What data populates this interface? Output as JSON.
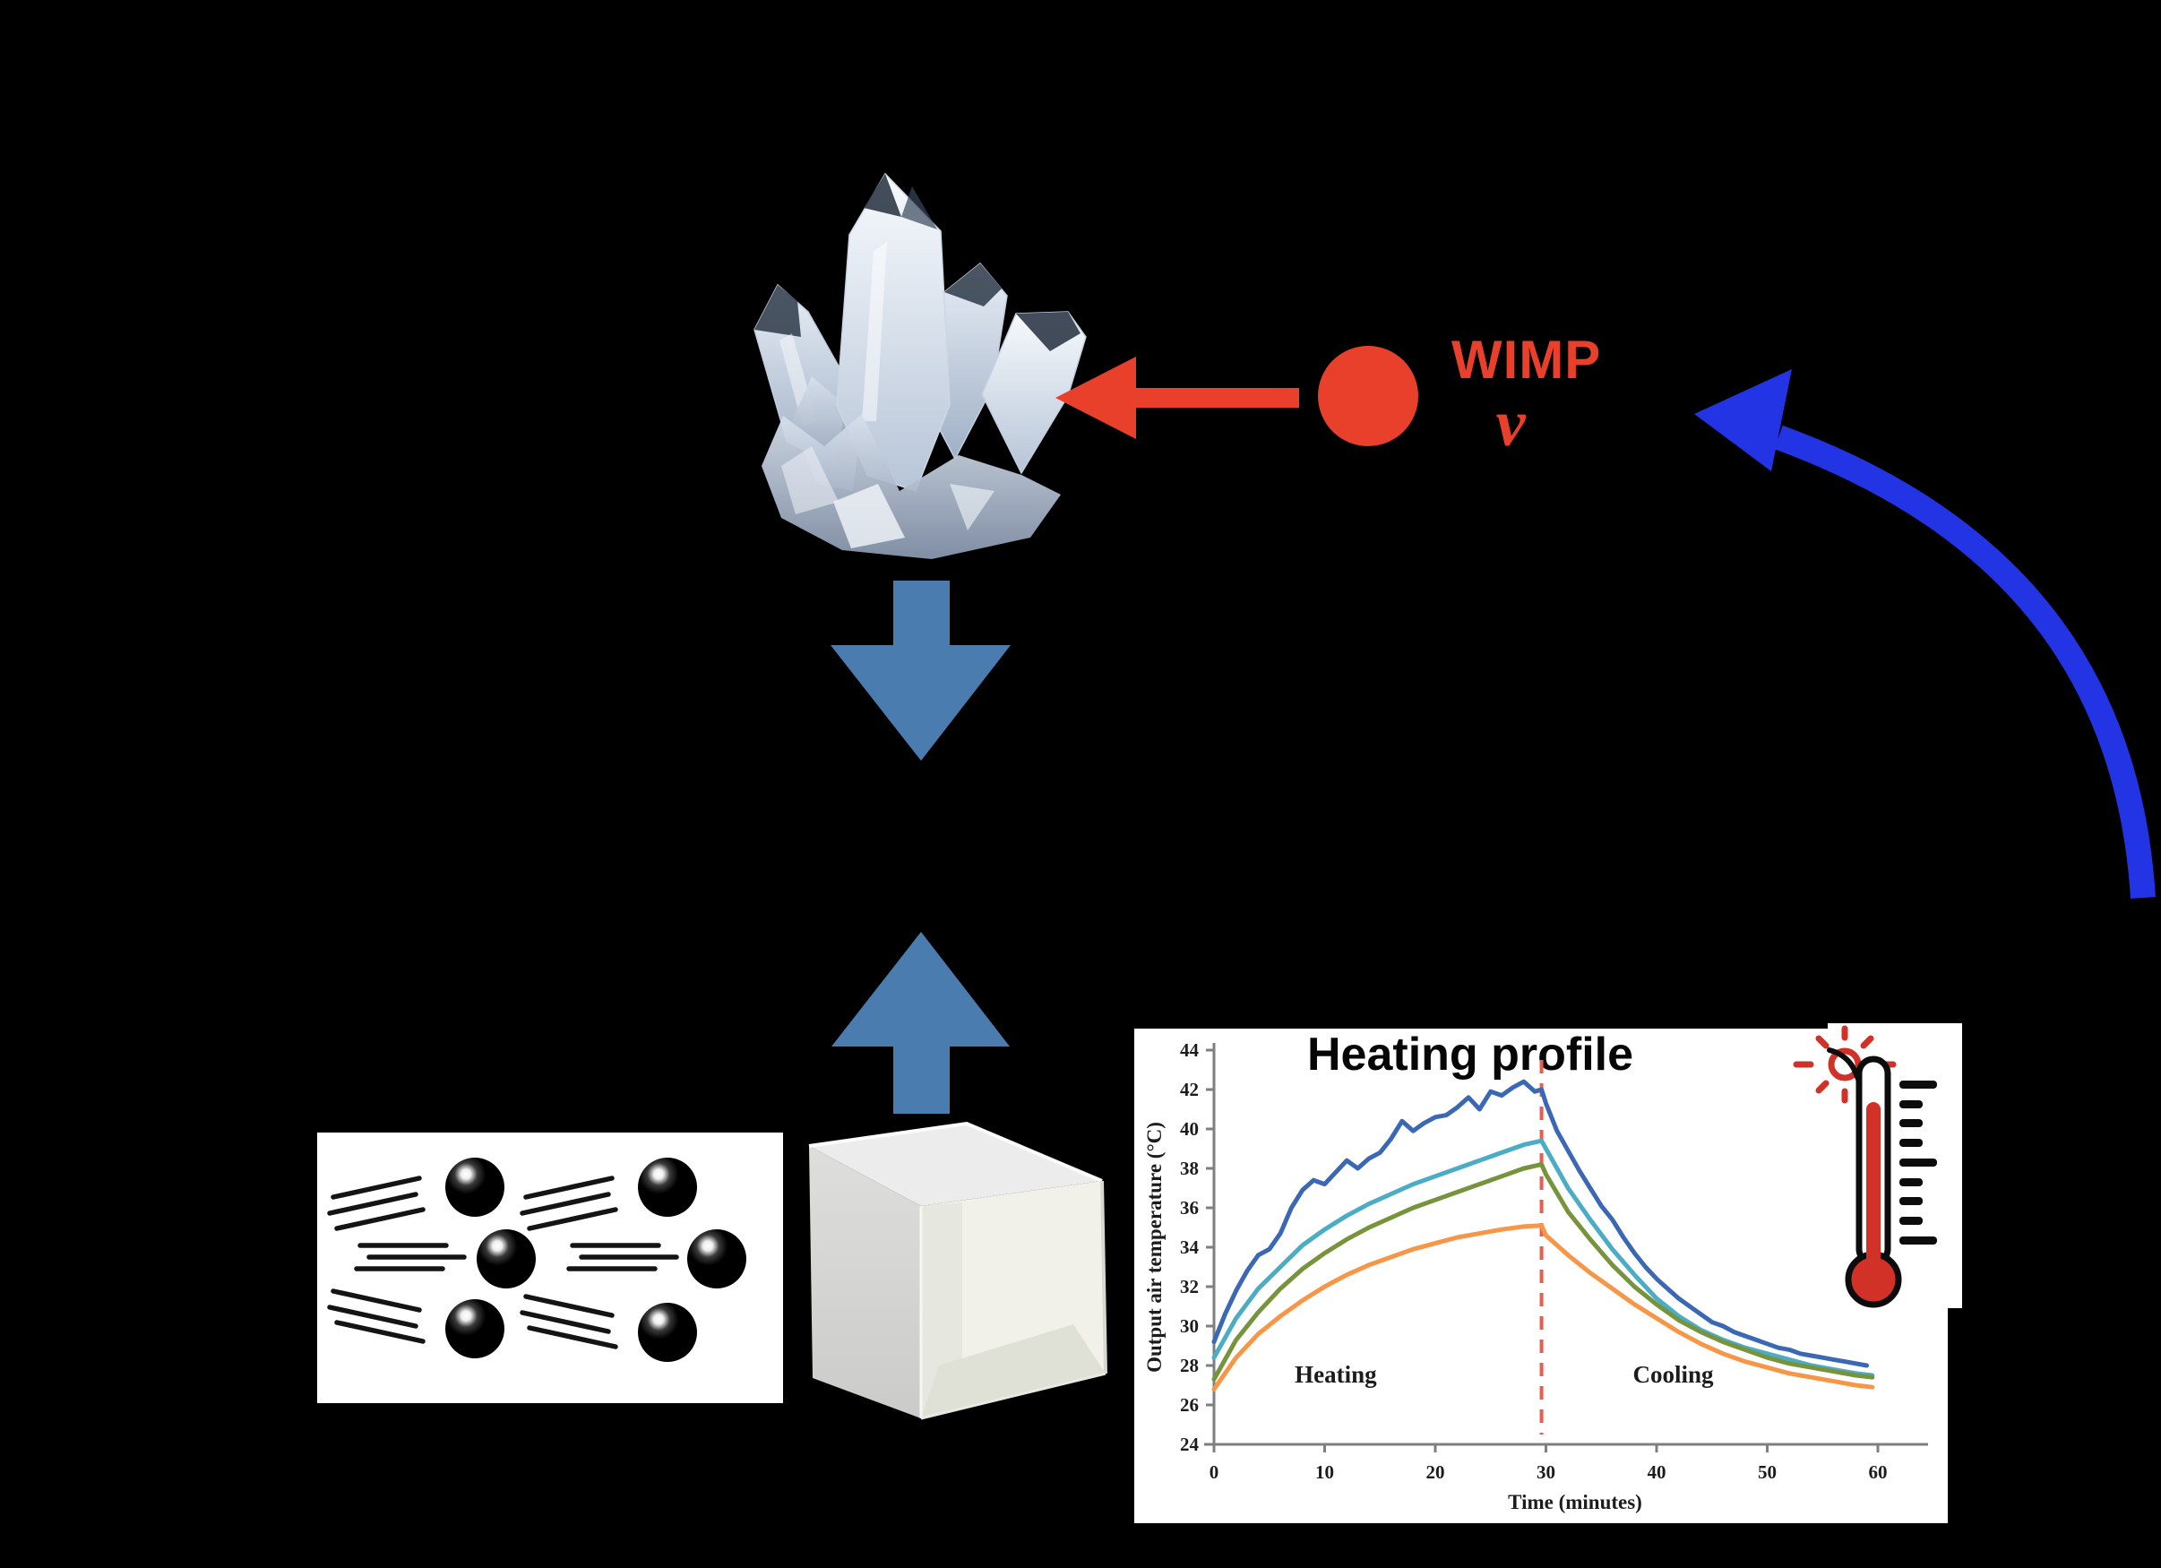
{
  "canvas": {
    "background": "#000000"
  },
  "colors": {
    "accent_red": "#e9402c",
    "curved_arrow_blue": "#2334e4",
    "block_arrow_blue": "#4a7cb0",
    "panel_white": "#ffffff",
    "thermometer_red": "#d23128",
    "chart_axis_gray": "#7f7f7f",
    "chart_text_black": "#1c1c1c"
  },
  "wimp": {
    "label": "WIMP",
    "neutrino_symbol": "ν"
  },
  "images": {
    "crystal": "quartz-crystal-cluster-photo",
    "cuvette": "frosted-glass-cube-photo",
    "molecules": "gas-molecules-with-motion-lines"
  },
  "chart_data": {
    "type": "line",
    "title": "Heating profile",
    "xlabel": "Time (minutes)",
    "ylabel": "Output air temperature (°C)",
    "xlim": [
      0,
      65
    ],
    "ylim": [
      24,
      44
    ],
    "xticks": [
      0,
      10,
      20,
      30,
      40,
      50,
      60
    ],
    "yticks": [
      24,
      26,
      28,
      30,
      32,
      34,
      36,
      38,
      40,
      42,
      44
    ],
    "grid": false,
    "legend": null,
    "vline": {
      "x": 29.6,
      "color": "#ef5a4e",
      "style": "dashed"
    },
    "annotations": [
      {
        "text": "Heating",
        "x": 11,
        "y": 27.6
      },
      {
        "text": "Cooling",
        "x": 41.5,
        "y": 27.6
      }
    ],
    "series": [
      {
        "name": "run-1-blue",
        "color": "#3b68b4",
        "points": [
          [
            0,
            29.2
          ],
          [
            1,
            30.6
          ],
          [
            2,
            31.8
          ],
          [
            3,
            32.8
          ],
          [
            4,
            33.6
          ],
          [
            5,
            33.9
          ],
          [
            6,
            34.7
          ],
          [
            7,
            36.0
          ],
          [
            8,
            36.9
          ],
          [
            9,
            37.4
          ],
          [
            10,
            37.2
          ],
          [
            11,
            37.8
          ],
          [
            12,
            38.4
          ],
          [
            13,
            38.0
          ],
          [
            14,
            38.5
          ],
          [
            15,
            38.8
          ],
          [
            16,
            39.5
          ],
          [
            17,
            40.4
          ],
          [
            18,
            39.9
          ],
          [
            19,
            40.3
          ],
          [
            20,
            40.6
          ],
          [
            21,
            40.7
          ],
          [
            22,
            41.1
          ],
          [
            23,
            41.6
          ],
          [
            24,
            41.0
          ],
          [
            25,
            41.9
          ],
          [
            26,
            41.7
          ],
          [
            27,
            42.1
          ],
          [
            28,
            42.4
          ],
          [
            29,
            41.9
          ],
          [
            29.6,
            42.0
          ],
          [
            30,
            41.3
          ],
          [
            31,
            39.9
          ],
          [
            32,
            38.9
          ],
          [
            33,
            37.9
          ],
          [
            34,
            37.0
          ],
          [
            35,
            36.1
          ],
          [
            36,
            35.4
          ],
          [
            37,
            34.5
          ],
          [
            38,
            33.7
          ],
          [
            39,
            33.0
          ],
          [
            40,
            32.4
          ],
          [
            41,
            31.9
          ],
          [
            42,
            31.4
          ],
          [
            43,
            31.0
          ],
          [
            44,
            30.6
          ],
          [
            45,
            30.2
          ],
          [
            46,
            30.0
          ],
          [
            47,
            29.7
          ],
          [
            48,
            29.5
          ],
          [
            49,
            29.3
          ],
          [
            50,
            29.1
          ],
          [
            51,
            28.9
          ],
          [
            52,
            28.8
          ],
          [
            53,
            28.6
          ],
          [
            54,
            28.5
          ],
          [
            55,
            28.4
          ],
          [
            56,
            28.3
          ],
          [
            57,
            28.2
          ],
          [
            58,
            28.1
          ],
          [
            59,
            28.0
          ]
        ]
      },
      {
        "name": "run-2-cyan",
        "color": "#4bacc6",
        "points": [
          [
            0,
            28.4
          ],
          [
            2,
            30.4
          ],
          [
            4,
            31.9
          ],
          [
            6,
            33.0
          ],
          [
            8,
            34.1
          ],
          [
            10,
            34.9
          ],
          [
            12,
            35.6
          ],
          [
            14,
            36.2
          ],
          [
            16,
            36.7
          ],
          [
            18,
            37.2
          ],
          [
            20,
            37.6
          ],
          [
            22,
            38.0
          ],
          [
            24,
            38.4
          ],
          [
            26,
            38.8
          ],
          [
            28,
            39.2
          ],
          [
            29.6,
            39.4
          ],
          [
            30,
            39.0
          ],
          [
            32,
            37.0
          ],
          [
            34,
            35.4
          ],
          [
            36,
            33.9
          ],
          [
            38,
            32.6
          ],
          [
            40,
            31.4
          ],
          [
            42,
            30.5
          ],
          [
            44,
            29.8
          ],
          [
            46,
            29.3
          ],
          [
            48,
            28.9
          ],
          [
            50,
            28.6
          ],
          [
            52,
            28.3
          ],
          [
            54,
            28.0
          ],
          [
            56,
            27.8
          ],
          [
            58,
            27.6
          ],
          [
            59.5,
            27.5
          ]
        ]
      },
      {
        "name": "run-3-green",
        "color": "#77933c",
        "points": [
          [
            0,
            27.3
          ],
          [
            2,
            29.3
          ],
          [
            4,
            30.7
          ],
          [
            6,
            31.9
          ],
          [
            8,
            32.9
          ],
          [
            10,
            33.7
          ],
          [
            12,
            34.4
          ],
          [
            14,
            35.0
          ],
          [
            16,
            35.5
          ],
          [
            18,
            36.0
          ],
          [
            20,
            36.4
          ],
          [
            22,
            36.8
          ],
          [
            24,
            37.2
          ],
          [
            26,
            37.6
          ],
          [
            28,
            38.0
          ],
          [
            29.6,
            38.2
          ],
          [
            30,
            37.7
          ],
          [
            32,
            35.8
          ],
          [
            34,
            34.4
          ],
          [
            36,
            33.1
          ],
          [
            38,
            32.0
          ],
          [
            40,
            31.1
          ],
          [
            42,
            30.3
          ],
          [
            44,
            29.7
          ],
          [
            46,
            29.2
          ],
          [
            48,
            28.8
          ],
          [
            50,
            28.4
          ],
          [
            52,
            28.1
          ],
          [
            54,
            27.9
          ],
          [
            56,
            27.7
          ],
          [
            58,
            27.5
          ],
          [
            59.5,
            27.4
          ]
        ]
      },
      {
        "name": "run-4-orange",
        "color": "#f79646",
        "points": [
          [
            0,
            26.8
          ],
          [
            2,
            28.4
          ],
          [
            4,
            29.6
          ],
          [
            6,
            30.5
          ],
          [
            8,
            31.3
          ],
          [
            10,
            32.0
          ],
          [
            12,
            32.6
          ],
          [
            14,
            33.1
          ],
          [
            16,
            33.5
          ],
          [
            18,
            33.9
          ],
          [
            20,
            34.2
          ],
          [
            22,
            34.5
          ],
          [
            24,
            34.7
          ],
          [
            26,
            34.9
          ],
          [
            28,
            35.05
          ],
          [
            29.6,
            35.1
          ],
          [
            30,
            34.6
          ],
          [
            32,
            33.6
          ],
          [
            34,
            32.7
          ],
          [
            36,
            31.9
          ],
          [
            38,
            31.1
          ],
          [
            40,
            30.4
          ],
          [
            42,
            29.7
          ],
          [
            44,
            29.1
          ],
          [
            46,
            28.6
          ],
          [
            48,
            28.2
          ],
          [
            50,
            27.9
          ],
          [
            52,
            27.6
          ],
          [
            54,
            27.4
          ],
          [
            56,
            27.2
          ],
          [
            58,
            27.0
          ],
          [
            59.5,
            26.9
          ]
        ]
      }
    ]
  }
}
